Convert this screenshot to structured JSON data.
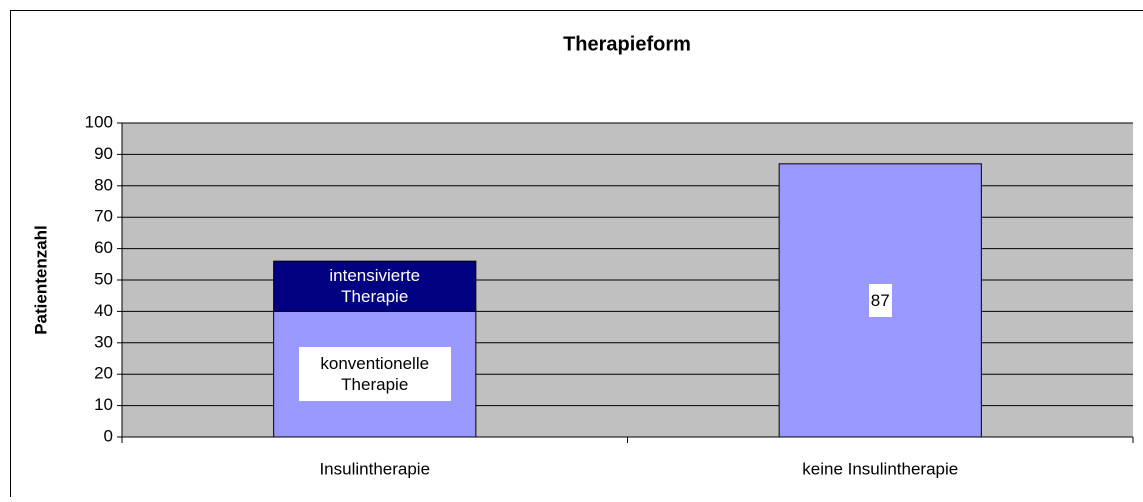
{
  "chart_data": {
    "type": "stacked-bar",
    "title": "Therapieform",
    "y_label": "Patientenzahl",
    "categories": [
      "Insulintherapie",
      "keine Insulintherapie"
    ],
    "series": [
      {
        "name": "konventionelle Therapie",
        "color": "#9999ff",
        "label_color": "#000000",
        "label_bg": "#ffffff",
        "values": [
          40,
          null
        ]
      },
      {
        "name": "intensivierte Therapie",
        "color": "#000080",
        "label_color": "#ffffff",
        "values": [
          16,
          null
        ]
      },
      {
        "color": "#9999ff",
        "label_color": "#000000",
        "label_bg": "#ffffff",
        "values": [
          null,
          87
        ]
      }
    ],
    "ylim": [
      0,
      100
    ],
    "yticks": [
      0,
      10,
      20,
      30,
      40,
      50,
      60,
      70,
      80,
      90,
      100
    ],
    "grid": true,
    "plot_bg": "#c0c0c0"
  }
}
